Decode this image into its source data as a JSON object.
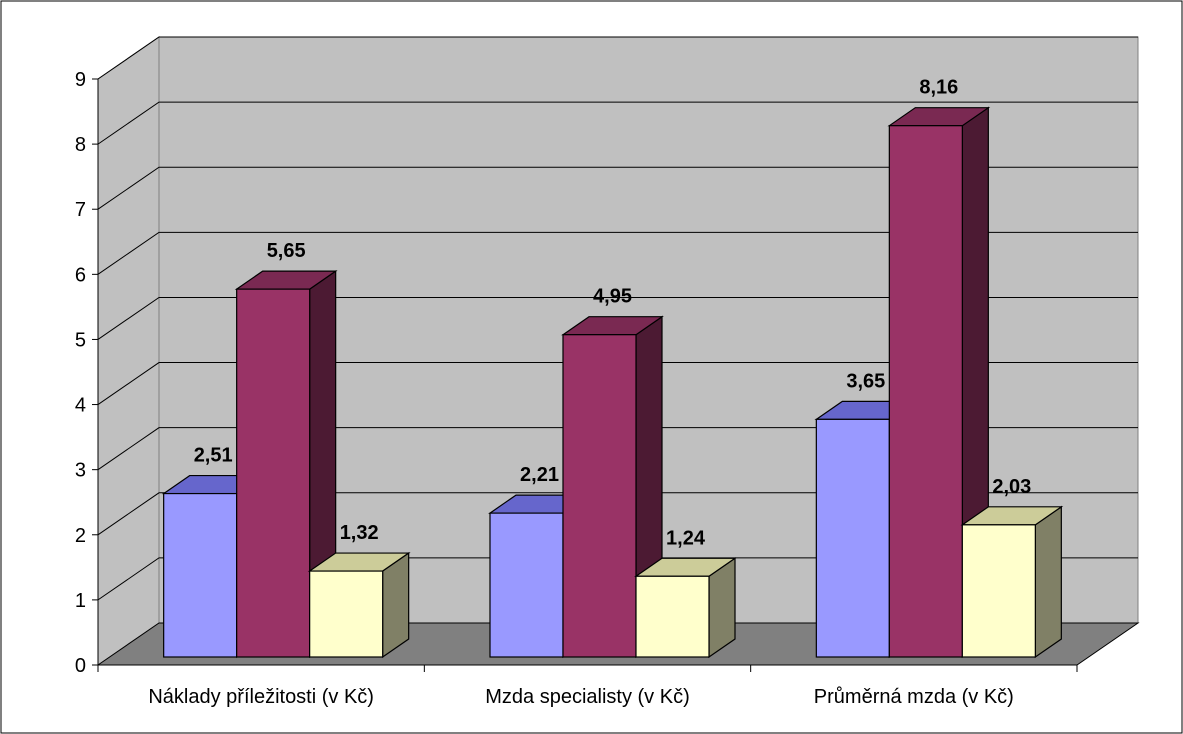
{
  "chart_data": {
    "type": "bar",
    "categories": [
      "Náklady příležitosti (v Kč)",
      "Mzda specialisty (v Kč)",
      "Průměrná mzda (v Kč)"
    ],
    "series": [
      {
        "values": [
          2.51,
          2.21,
          3.65
        ],
        "color": "#9999FF",
        "top_color": "#6666CC",
        "side_color": "#5C5C99"
      },
      {
        "values": [
          5.65,
          4.95,
          8.16
        ],
        "color": "#993366",
        "top_color": "#7A2952",
        "side_color": "#4C1A33"
      },
      {
        "values": [
          1.32,
          1.24,
          2.03
        ],
        "color": "#FFFFCC",
        "top_color": "#CCCC99",
        "side_color": "#808066"
      }
    ],
    "data_labels": [
      [
        "2,51",
        "5,65",
        "1,32"
      ],
      [
        "2,21",
        "4,95",
        "1,24"
      ],
      [
        "3,65",
        "8,16",
        "2,03"
      ]
    ],
    "y_ticks": [
      "0",
      "1",
      "2",
      "3",
      "4",
      "5",
      "6",
      "7",
      "8",
      "9"
    ],
    "ylim": [
      0,
      9
    ],
    "grid": true,
    "three_d": true,
    "wall_color": "#C0C0C0",
    "floor_color": "#808080",
    "title": "",
    "xlabel": "",
    "ylabel": ""
  }
}
